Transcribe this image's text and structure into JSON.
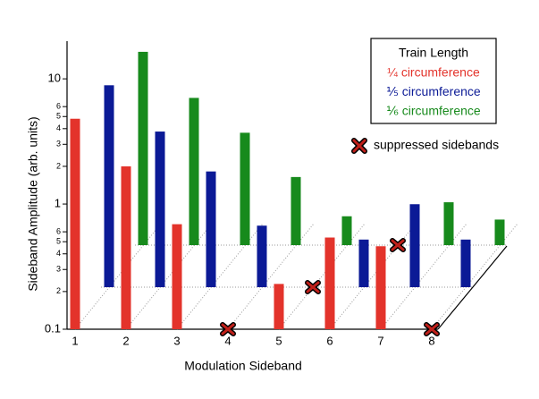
{
  "chart_data": {
    "type": "bar3d",
    "x_label": "Modulation Sideband",
    "y_label": "Sideband Amplitude (arb. units)",
    "legend_title": "Train Length",
    "annotation": "suppressed sidebands",
    "log": true,
    "categories": [
      "1",
      "2",
      "3",
      "4",
      "5",
      "6",
      "7",
      "8"
    ],
    "series": [
      {
        "name": "¼ circumference",
        "color": "#e3332b",
        "values": [
          4.8,
          2.0,
          0.69,
          null,
          0.23,
          0.54,
          0.46,
          null
        ]
      },
      {
        "name": "⅕ circumference",
        "color": "#0b1a96",
        "values": [
          4.1,
          1.75,
          0.84,
          0.31,
          null,
          0.24,
          0.46,
          0.24
        ]
      },
      {
        "name": "⅙ circumference",
        "color": "#178a1c",
        "values": [
          3.5,
          1.5,
          0.79,
          0.35,
          0.17,
          null,
          0.22,
          0.16
        ]
      }
    ],
    "ylim": [
      0.1,
      20
    ],
    "yticks": [
      0.1,
      {
        "value": 0.2,
        "label": "2"
      },
      {
        "value": 0.3,
        "label": "3"
      },
      {
        "value": 0.4,
        "label": "4"
      },
      {
        "value": 0.5,
        "label": "5"
      },
      {
        "value": 0.6,
        "label": "6"
      },
      1,
      {
        "value": 2,
        "label": "2"
      },
      {
        "value": 3,
        "label": "3"
      },
      {
        "value": 4,
        "label": "4"
      },
      {
        "value": 5,
        "label": "5"
      },
      {
        "value": 6,
        "label": "6"
      },
      10
    ]
  }
}
